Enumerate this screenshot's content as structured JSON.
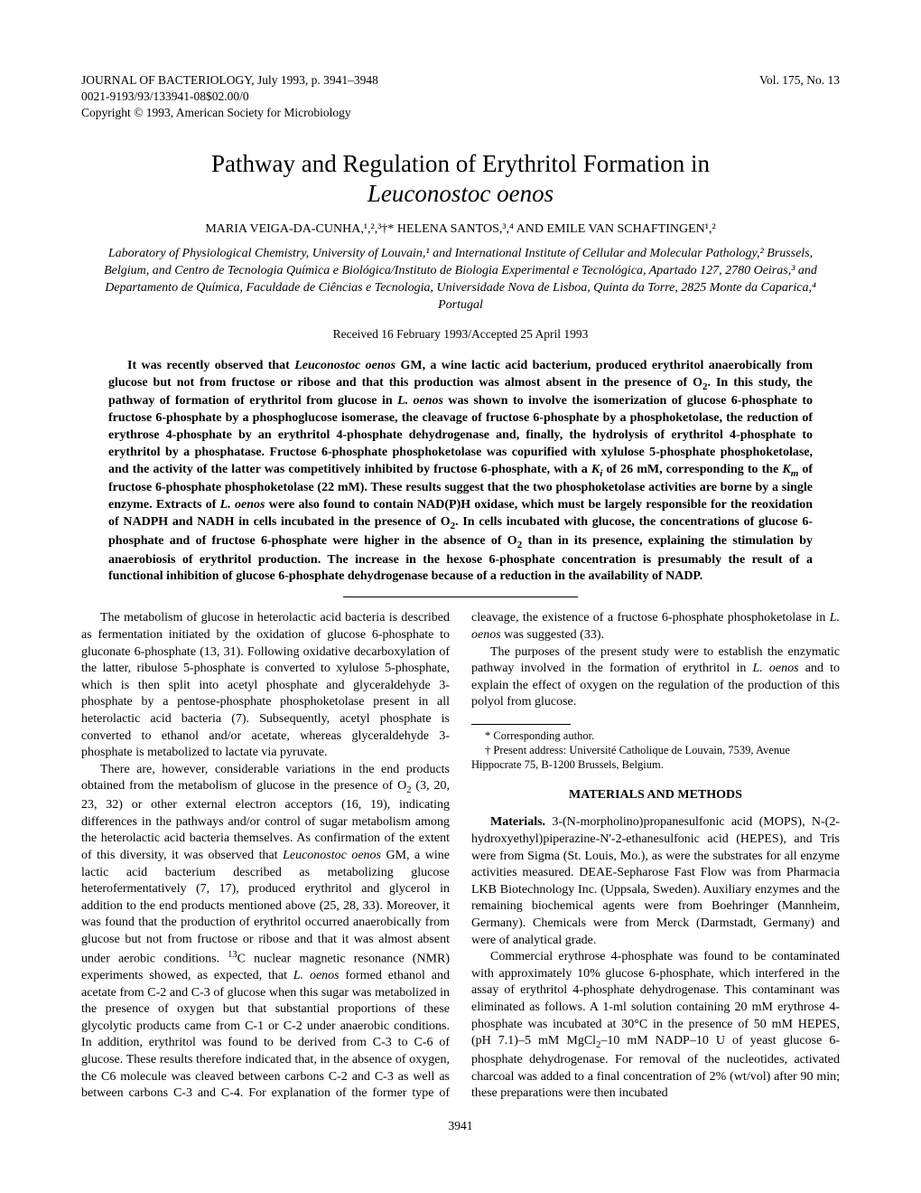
{
  "header": {
    "journal_line": "JOURNAL OF BACTERIOLOGY, July 1993, p. 3941–3948",
    "issn_line": "0021-9193/93/133941-08$02.00/0",
    "copyright_line": "Copyright © 1993, American Society for Microbiology",
    "volume_issue": "Vol. 175, No. 13"
  },
  "title": {
    "line1": "Pathway and Regulation of Erythritol Formation in",
    "species": "Leuconostoc oenos"
  },
  "authors": "MARIA VEIGA-DA-CUNHA,¹,²,³†* HELENA SANTOS,³,⁴ AND EMILE VAN SCHAFTINGEN¹,²",
  "affiliations": "Laboratory of Physiological Chemistry, University of Louvain,¹ and International Institute of Cellular and Molecular Pathology,² Brussels, Belgium, and Centro de Tecnologia Química e Biológica/Instituto de Biologia Experimental e Tecnológica, Apartado 127, 2780 Oeiras,³ and Departamento de Química, Faculdade de Ciências e Tecnologia, Universidade Nova de Lisboa, Quinta da Torre, 2825 Monte da Caparica,⁴ Portugal",
  "received": "Received 16 February 1993/Accepted 25 April 1993",
  "abstract": {
    "t1": "It was recently observed that ",
    "species1": "Leuconostoc oenos",
    "t2": " GM, a wine lactic acid bacterium, produced erythritol anaerobically from glucose but not from fructose or ribose and that this production was almost absent in the presence of O",
    "sub1": "2",
    "t3": ". In this study, the pathway of formation of erythritol from glucose in ",
    "species2": "L. oenos",
    "t4": " was shown to involve the isomerization of glucose 6-phosphate to fructose 6-phosphate by a phosphoglucose isomerase, the cleavage of fructose 6-phosphate by a phosphoketolase, the reduction of erythrose 4-phosphate by an erythritol 4-phosphate dehydrogenase and, finally, the hydrolysis of erythritol 4-phosphate to erythritol by a phosphatase. Fructose 6-phosphate phosphoketolase was copurified with xylulose 5-phosphate phosphoketolase, and the activity of the latter was competitively inhibited by fructose 6-phosphate, with a ",
    "ki": "K",
    "ki_sub": "i",
    "t5": " of 26 mM, corresponding to the ",
    "km": "K",
    "km_sub": "m",
    "t6": " of fructose 6-phosphate phosphoketolase (22 mM). These results suggest that the two phosphoketolase activities are borne by a single enzyme. Extracts of ",
    "species3": "L. oenos",
    "t7": " were also found to contain NAD(P)H oxidase, which must be largely responsible for the reoxidation of NADPH and NADH in cells incubated in the presence of O",
    "sub2": "2",
    "t8": ". In cells incubated with glucose, the concentrations of glucose 6-phosphate and of fructose 6-phosphate were higher in the absence of O",
    "sub3": "2",
    "t9": " than in its presence, explaining the stimulation by anaerobiosis of erythritol production. The increase in the hexose 6-phosphate concentration is presumably the result of a functional inhibition of glucose 6-phosphate dehydrogenase because of a reduction in the availability of NADP."
  },
  "body": {
    "p1": "The metabolism of glucose in heterolactic acid bacteria is described as fermentation initiated by the oxidation of glucose 6-phosphate to gluconate 6-phosphate (13, 31). Following oxidative decarboxylation of the latter, ribulose 5-phosphate is converted to xylulose 5-phosphate, which is then split into acetyl phosphate and glyceraldehyde 3-phosphate by a pentose-phosphate phosphoketolase present in all heterolactic acid bacteria (7). Subsequently, acetyl phosphate is converted to ethanol and/or acetate, whereas glyceraldehyde 3-phosphate is metabolized to lactate via pyruvate.",
    "p2a": "There are, however, considerable variations in the end products obtained from the metabolism of glucose in the presence of O",
    "p2_sub": "2",
    "p2b": " (3, 20, 23, 32) or other external electron acceptors (16, 19), indicating differences in the pathways and/or control of sugar metabolism among the heterolactic acid bacteria themselves. As confirmation of the extent of this diversity, it was observed that ",
    "p2_sp1": "Leuconostoc oenos",
    "p2c": " GM, a wine lactic acid bacterium described as metabolizing glucose heterofermentatively (7, 17), produced erythritol and glycerol in addition to the end products mentioned above (25, 28, 33). Moreover, it was found that the production of erythritol occurred anaerobically from glucose but not from fructose or ribose and that it was almost absent under aerobic conditions. ",
    "p2_c13": "13",
    "p2d": "C nuclear magnetic resonance (NMR) experiments showed, as expected, that ",
    "p2_sp2": "L. oenos",
    "p2e": " formed ethanol and acetate from C-2 and C-3 of glucose when this sugar was metabolized in the presence of oxygen but that substantial proportions of these glycolytic products came from C-1 or C-2 under anaerobic conditions. In addition, erythritol was found to be derived from C-3 to C-6 of glucose. These results therefore indicated that, in the absence of oxygen, the C6 molecule was cleaved between carbons C-2 and C-3 as well as between carbons C-3 and C-4. For explanation of the former type of cleavage, the existence of a fructose 6-phosphate phosphoketolase in ",
    "p2_sp3": "L. oenos",
    "p2f": " was suggested (33).",
    "p3a": "The purposes of the present study were to establish the enzymatic pathway involved in the formation of erythritol in ",
    "p3_sp": "L. oenos",
    "p3b": " and to explain the effect of oxygen on the regulation of the production of this polyol from glucose.",
    "section_head": "MATERIALS AND METHODS",
    "p4a": "Materials. ",
    "p4b": "3-(N-morpholino)propanesulfonic acid (MOPS), N-(2-hydroxyethyl)piperazine-N'-2-ethanesulfonic acid (HEPES), and Tris were from Sigma (St. Louis, Mo.), as were the substrates for all enzyme activities measured. DEAE-Sepharose Fast Flow was from Pharmacia LKB Biotechnology Inc. (Uppsala, Sweden). Auxiliary enzymes and the remaining biochemical agents were from Boehringer (Mannheim, Germany). Chemicals were from Merck (Darmstadt, Germany) and were of analytical grade.",
    "p5a": "Commercial erythrose 4-phosphate was found to be contaminated with approximately 10% glucose 6-phosphate, which interfered in the assay of erythritol 4-phosphate dehydrogenase. This contaminant was eliminated as follows. A 1-ml solution containing 20 mM erythrose 4-phosphate was incubated at 30°C in the presence of 50 mM HEPES, (pH 7.1)–5 mM MgCl",
    "p5_sub": "2",
    "p5b": "–10 mM NADP–10 U of yeast glucose 6-phosphate dehydrogenase. For removal of the nucleotides, activated charcoal was added to a final concentration of 2% (wt/vol) after 90 min; these preparations were then incubated"
  },
  "footnotes": {
    "f1": "* Corresponding author.",
    "f2": "† Present address: Université Catholique de Louvain, 7539, Avenue Hippocrate 75, B-1200 Brussels, Belgium."
  },
  "page_number": "3941"
}
